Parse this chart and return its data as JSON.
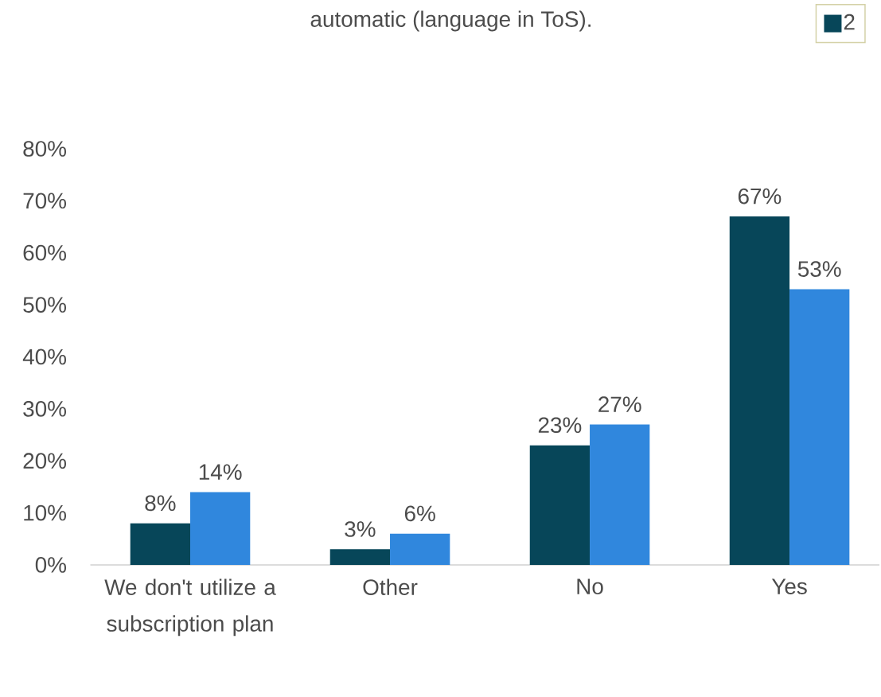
{
  "chart_data": {
    "type": "bar",
    "title": "automatic (language in ToS).",
    "categories": [
      "We don't utilize a subscription plan",
      "Other",
      "No",
      "Yes"
    ],
    "series": [
      {
        "name": "2",
        "color": "#074659",
        "values": [
          8,
          3,
          23,
          67
        ],
        "value_labels": [
          "8%",
          "3%",
          "23%",
          "67%"
        ]
      },
      {
        "color": "#3087dd",
        "values": [
          14,
          6,
          27,
          53
        ],
        "value_labels": [
          "14%",
          "6%",
          "27%",
          "53%"
        ]
      }
    ],
    "ylim": [
      0,
      80
    ],
    "yticks": [
      {
        "value": 0,
        "label": "0%"
      },
      {
        "value": 10,
        "label": "10%"
      },
      {
        "value": 20,
        "label": "20%"
      },
      {
        "value": 30,
        "label": "30%"
      },
      {
        "value": 40,
        "label": "40%"
      },
      {
        "value": 50,
        "label": "50%"
      },
      {
        "value": 60,
        "label": "60%"
      },
      {
        "value": 70,
        "label": "70%"
      },
      {
        "value": 80,
        "label": "80%"
      }
    ],
    "grid": false,
    "legend": "top right"
  }
}
